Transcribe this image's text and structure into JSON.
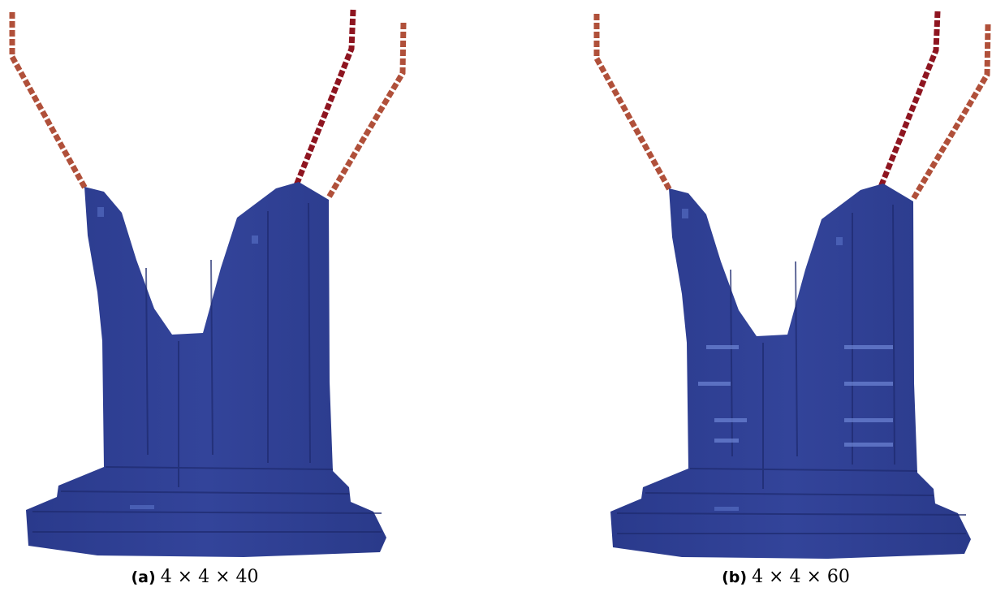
{
  "figures": [
    {
      "label": "(a)",
      "caption": "4 × 4 × 40"
    },
    {
      "label": "(b)",
      "caption": "4 × 4 × 60"
    }
  ]
}
